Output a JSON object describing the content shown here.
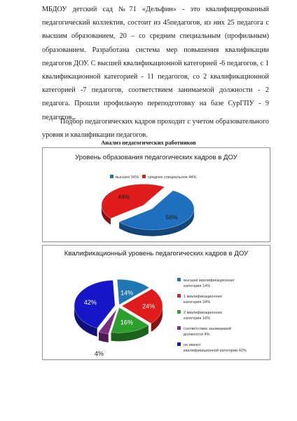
{
  "document": {
    "paragraphs": [
      "МБДОУ детский сад №71 «Дельфин» - это квалифицированный педагогический коллектив, состоит из 45педагогов, из них 25 педагога с высшим образованием, 20 – со средним специальным (профильным) образованием. Разработана система мер повышения квалификации педагогов ДОУ. С высшей квалификационной категорией -6 педагогов, с 1 квалификационной категорией - 11 педагогов, со 2 квалификационной категорией -7 педагогов, соответствием занимаемой должности - 2 педагога. Прошли профильную переподготовку на базе СурГПУ - 9 педагогов.",
      "Подбор педагогических кадров проходит с учетом образовательного уровня и квалификации педагогов."
    ],
    "section_title": "Анализ педагогических работников"
  },
  "chart_data": [
    {
      "type": "pie",
      "title": "Уровень образования педагогических кадров  в ДОУ",
      "legend_position": "top",
      "series": [
        {
          "name": "высшее 56%",
          "value": 56,
          "label": "56%",
          "color": "#1f6fbf"
        },
        {
          "name": "среднее  специальное 44%",
          "value": 44,
          "label": "44%",
          "color": "#e01b1b"
        }
      ]
    },
    {
      "type": "pie",
      "title": "Квалификационный  уровень педагогических кадров в ДОУ",
      "legend_position": "right",
      "series": [
        {
          "name": "высшая квалификационная категория 14%",
          "value": 14,
          "label": "14%",
          "color": "#1f77b4"
        },
        {
          "name": "1 квалификационная  категория 24%",
          "value": 24,
          "label": "24%",
          "color": "#e01b1b"
        },
        {
          "name": "2 квалификационная  категория 16%",
          "value": 16,
          "label": "16%",
          "color": "#2ca02c"
        },
        {
          "name": "соответствие занимаемой должности 4%",
          "value": 4,
          "label": "4%",
          "color": "#7b2d7f"
        },
        {
          "name": "не имеют квалификационной категории 42%",
          "value": 42,
          "label": "42%",
          "color": "#1616c8"
        }
      ]
    }
  ]
}
